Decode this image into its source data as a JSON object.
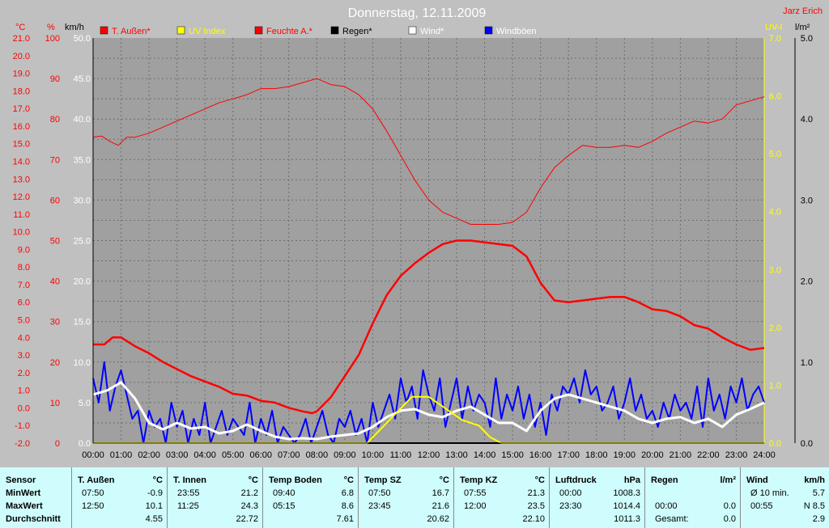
{
  "title": "Donnerstag, 12.11.2009",
  "author": "Jarz Erich",
  "units": {
    "temp": "°C",
    "hum": "%",
    "wind": "km/h",
    "uv": "UV-I",
    "rain": "l/m²"
  },
  "legend": [
    {
      "label": "T. Außen*",
      "color": "#ff0000",
      "text_color": "#ff0000"
    },
    {
      "label": "UV Index",
      "color": "#ffff00",
      "text_color": "#ffff00"
    },
    {
      "label": "Feuchte A.*",
      "color": "#ff0000",
      "text_color": "#ff0000"
    },
    {
      "label": "Regen*",
      "color": "#000000",
      "text_color": "#000000"
    },
    {
      "label": "Wind*",
      "color": "#ffffff",
      "text_color": "#ffffff"
    },
    {
      "label": "Windböen",
      "color": "#0000ff",
      "text_color": "#ffffff"
    }
  ],
  "colors": {
    "background": "#c0c0c0",
    "plot": "#a0a0a0",
    "temp": "#ff0000",
    "humidity": "#ff0000",
    "uv": "#ffff00",
    "wind": "#ffffff",
    "gust": "#0000ff",
    "table": "#cffcfc"
  },
  "chart_data": {
    "type": "line",
    "x_labels": [
      "00:00",
      "01:00",
      "02:00",
      "03:00",
      "04:00",
      "05:00",
      "06:00",
      "07:00",
      "08:00",
      "09:00",
      "10:00",
      "11:00",
      "12:00",
      "13:00",
      "14:00",
      "15:00",
      "16:00",
      "17:00",
      "18:00",
      "19:00",
      "20:00",
      "21:00",
      "22:00",
      "23:00",
      "24:00"
    ],
    "axes": {
      "temp": {
        "label": "°C",
        "min": -2.0,
        "max": 21.0,
        "ticks": [
          "21.0",
          "20.0",
          "19.0",
          "18.0",
          "17.0",
          "16.0",
          "15.0",
          "14.0",
          "13.0",
          "12.0",
          "11.0",
          "10.0",
          "9.0",
          "8.0",
          "7.0",
          "6.0",
          "5.0",
          "4.0",
          "3.0",
          "2.0",
          "1.0",
          "0.0",
          "-1.0",
          "-2.0"
        ]
      },
      "humidity": {
        "label": "%",
        "min": 0,
        "max": 100,
        "ticks": [
          "100",
          "90",
          "80",
          "70",
          "60",
          "50",
          "40",
          "30",
          "20",
          "10",
          "0"
        ]
      },
      "wind": {
        "label": "km/h",
        "min": 0,
        "max": 50,
        "ticks": [
          "50.0",
          "45.0",
          "40.0",
          "35.0",
          "30.0",
          "25.0",
          "20.0",
          "15.0",
          "10.0",
          "5.0",
          "0.0"
        ]
      },
      "uv": {
        "label": "UV-I",
        "min": 0,
        "max": 7,
        "ticks": [
          "7.0",
          "6.0",
          "5.0",
          "4.0",
          "3.0",
          "2.0",
          "1.0",
          "0.0"
        ]
      },
      "rain": {
        "label": "l/m²",
        "min": 0,
        "max": 5,
        "ticks": [
          "5.0",
          "4.0",
          "3.0",
          "2.0",
          "1.0",
          "0.0"
        ]
      }
    },
    "series": [
      {
        "name": "T. Außen*",
        "axis": "temp",
        "x": [
          0,
          0.4,
          0.7,
          1,
          1.5,
          2,
          2.5,
          3,
          3.5,
          4,
          4.5,
          5,
          5.5,
          6,
          6.5,
          7,
          7.5,
          7.83,
          8,
          8.5,
          9,
          9.5,
          10,
          10.5,
          11,
          11.5,
          12,
          12.5,
          13,
          13.5,
          14,
          14.5,
          15,
          15.5,
          16,
          16.5,
          17,
          17.5,
          18,
          18.5,
          19,
          19.5,
          20,
          20.5,
          21,
          21.5,
          22,
          22.5,
          23,
          23.5,
          24
        ],
        "y": [
          3.6,
          3.6,
          4.0,
          4.0,
          3.5,
          3.1,
          2.6,
          2.2,
          1.8,
          1.5,
          1.2,
          0.8,
          0.7,
          0.4,
          0.3,
          0.0,
          -0.2,
          -0.3,
          -0.2,
          0.6,
          1.8,
          3.0,
          4.8,
          6.4,
          7.5,
          8.2,
          8.8,
          9.3,
          9.5,
          9.5,
          9.4,
          9.3,
          9.2,
          8.6,
          7.1,
          6.1,
          6.0,
          6.1,
          6.2,
          6.3,
          6.3,
          6.0,
          5.6,
          5.5,
          5.2,
          4.7,
          4.5,
          4.0,
          3.6,
          3.3,
          3.4
        ]
      },
      {
        "name": "Feuchte A.*",
        "axis": "humidity",
        "x": [
          0,
          0.3,
          0.6,
          0.9,
          1.2,
          1.5,
          2,
          2.5,
          3,
          3.5,
          4,
          4.5,
          5,
          5.5,
          6,
          6.5,
          7,
          7.5,
          8,
          8.5,
          9,
          9.5,
          10,
          10.5,
          11,
          11.5,
          12,
          12.5,
          13,
          13.5,
          14,
          14.5,
          15,
          15.5,
          16,
          16.5,
          17,
          17.5,
          18,
          18.5,
          19,
          19.5,
          20,
          20.5,
          21,
          21.5,
          22,
          22.5,
          23,
          23.5,
          24
        ],
        "y": [
          75.5,
          75.8,
          74.5,
          73.5,
          75.5,
          75.5,
          76.5,
          78,
          79.5,
          81,
          82.5,
          84,
          85,
          86,
          87.5,
          87.5,
          88,
          89,
          90,
          88.5,
          88,
          86,
          82.5,
          77,
          71,
          65,
          60,
          57,
          55.5,
          54,
          54,
          54,
          54.5,
          57,
          63,
          68,
          71,
          73.5,
          73,
          73,
          73.5,
          73,
          74.5,
          76.5,
          78,
          79.5,
          79,
          80,
          83.5,
          84.5,
          85.5
        ]
      },
      {
        "name": "UV Index",
        "axis": "uv",
        "x": [
          0,
          9.8,
          10.2,
          10.8,
          11.4,
          12,
          12.6,
          13.2,
          13.8,
          14.2,
          14.6,
          15,
          24
        ],
        "y": [
          0,
          0,
          0.2,
          0.5,
          0.8,
          0.8,
          0.6,
          0.4,
          0.3,
          0.1,
          0,
          0,
          0
        ]
      },
      {
        "name": "Regen*",
        "axis": "rain",
        "x": [
          0,
          24
        ],
        "y": [
          0,
          0
        ]
      },
      {
        "name": "Wind*",
        "axis": "wind",
        "x": [
          0,
          0.5,
          1,
          1.5,
          2,
          2.5,
          3,
          3.5,
          4,
          4.5,
          5,
          5.5,
          6,
          6.5,
          7,
          7.5,
          8,
          8.5,
          9,
          9.5,
          10,
          10.5,
          11,
          11.5,
          12,
          12.5,
          13,
          13.5,
          14,
          14.5,
          15,
          15.5,
          16,
          16.5,
          17,
          17.5,
          18,
          18.5,
          19,
          19.5,
          20,
          20.5,
          21,
          21.5,
          22,
          22.5,
          23,
          23.5,
          24
        ],
        "y": [
          6,
          6.5,
          7.5,
          5.5,
          2.5,
          1.7,
          2.5,
          1.8,
          2.0,
          1.2,
          1.5,
          2.3,
          1.5,
          0.8,
          0.5,
          0.6,
          0.5,
          0.8,
          1.0,
          1.2,
          2.0,
          3.2,
          4.0,
          4.2,
          3.5,
          3.2,
          4.0,
          4.5,
          3.5,
          2.5,
          2.5,
          1.5,
          4.0,
          5.5,
          6.0,
          5.5,
          5.0,
          4.5,
          4.0,
          3.0,
          2.5,
          3.0,
          3.2,
          2.5,
          3.0,
          2.0,
          3.5,
          4.2,
          5.0
        ]
      },
      {
        "name": "Windböen",
        "axis": "wind",
        "x": [
          0,
          0.2,
          0.4,
          0.6,
          0.8,
          1,
          1.2,
          1.4,
          1.6,
          1.8,
          2,
          2.2,
          2.4,
          2.6,
          2.8,
          3,
          3.2,
          3.4,
          3.6,
          3.8,
          4,
          4.2,
          4.4,
          4.6,
          4.8,
          5,
          5.2,
          5.4,
          5.6,
          5.8,
          6,
          6.2,
          6.4,
          6.6,
          6.8,
          7,
          7.2,
          7.4,
          7.6,
          7.8,
          8,
          8.2,
          8.4,
          8.6,
          8.8,
          9,
          9.2,
          9.4,
          9.6,
          9.8,
          10,
          10.2,
          10.4,
          10.6,
          10.8,
          11,
          11.2,
          11.4,
          11.6,
          11.8,
          12,
          12.2,
          12.4,
          12.6,
          12.8,
          13,
          13.2,
          13.4,
          13.6,
          13.8,
          14,
          14.2,
          14.4,
          14.6,
          14.8,
          15,
          15.2,
          15.4,
          15.6,
          15.8,
          16,
          16.2,
          16.4,
          16.6,
          16.8,
          17,
          17.2,
          17.4,
          17.6,
          17.8,
          18,
          18.2,
          18.4,
          18.6,
          18.8,
          19,
          19.2,
          19.4,
          19.6,
          19.8,
          20,
          20.2,
          20.4,
          20.6,
          20.8,
          21,
          21.2,
          21.4,
          21.6,
          21.8,
          22,
          22.2,
          22.4,
          22.6,
          22.8,
          23,
          23.2,
          23.4,
          23.6,
          23.8,
          24
        ],
        "y": [
          8,
          5,
          10,
          4,
          7,
          9,
          6,
          3,
          4,
          0,
          4,
          2,
          3,
          0,
          5,
          2,
          4,
          0,
          3,
          1,
          5,
          0,
          2,
          4,
          1,
          3,
          2,
          1,
          5,
          0,
          3,
          1,
          4,
          0,
          2,
          1,
          0,
          1,
          3,
          0,
          2,
          4,
          1,
          0,
          3,
          2,
          4,
          1,
          3,
          0,
          5,
          2,
          4,
          6,
          3,
          8,
          5,
          7,
          3,
          9,
          6,
          4,
          8,
          2,
          5,
          8,
          3,
          7,
          4,
          6,
          5,
          2,
          8,
          3,
          6,
          4,
          7,
          3,
          6,
          2,
          5,
          1,
          6,
          4,
          7,
          6,
          8,
          5,
          9,
          6,
          7,
          4,
          5,
          7,
          3,
          5,
          8,
          4,
          6,
          3,
          4,
          2,
          5,
          3,
          6,
          4,
          5,
          3,
          7,
          2,
          8,
          4,
          6,
          3,
          7,
          5,
          8,
          4,
          6,
          7,
          5
        ]
      }
    ]
  },
  "table": {
    "row_labels": [
      "Sensor",
      "MinWert",
      "MaxWert",
      "Durchschnitt"
    ],
    "columns": [
      {
        "title": "T. Außen",
        "unit": "°C",
        "rows": [
          [
            "07:50",
            "-0.9"
          ],
          [
            "12:50",
            "10.1"
          ],
          [
            "",
            "4.55"
          ]
        ]
      },
      {
        "title": "T. Innen",
        "unit": "°C",
        "rows": [
          [
            "23:55",
            "21.2"
          ],
          [
            "11:25",
            "24.3"
          ],
          [
            "",
            "22.72"
          ]
        ]
      },
      {
        "title": "Temp Boden",
        "unit": "°C",
        "rows": [
          [
            "09:40",
            "6.8"
          ],
          [
            "05:15",
            "8.6"
          ],
          [
            "",
            "7.61"
          ]
        ]
      },
      {
        "title": "Temp SZ",
        "unit": "°C",
        "rows": [
          [
            "07:50",
            "16.7"
          ],
          [
            "23:45",
            "21.6"
          ],
          [
            "",
            "20.62"
          ]
        ]
      },
      {
        "title": "Temp KZ",
        "unit": "°C",
        "rows": [
          [
            "07:55",
            "21.3"
          ],
          [
            "12:00",
            "23.5"
          ],
          [
            "",
            "22.10"
          ]
        ]
      },
      {
        "title": "Luftdruck",
        "unit": "hPa",
        "rows": [
          [
            "00:00",
            "1008.3"
          ],
          [
            "23:30",
            "1014.4"
          ],
          [
            "",
            "1011.3"
          ]
        ]
      },
      {
        "title": "Regen",
        "unit": "l/m²",
        "rows": [
          [
            "",
            ""
          ],
          [
            "00:00",
            "0.0"
          ],
          [
            "Gesamt:",
            "0.0"
          ]
        ]
      },
      {
        "title": "Wind",
        "unit": "km/h",
        "rows": [
          [
            "Ø 10 min.",
            "5.7"
          ],
          [
            "00:55",
            "N 8.5"
          ],
          [
            "",
            "2.9"
          ]
        ]
      }
    ]
  }
}
